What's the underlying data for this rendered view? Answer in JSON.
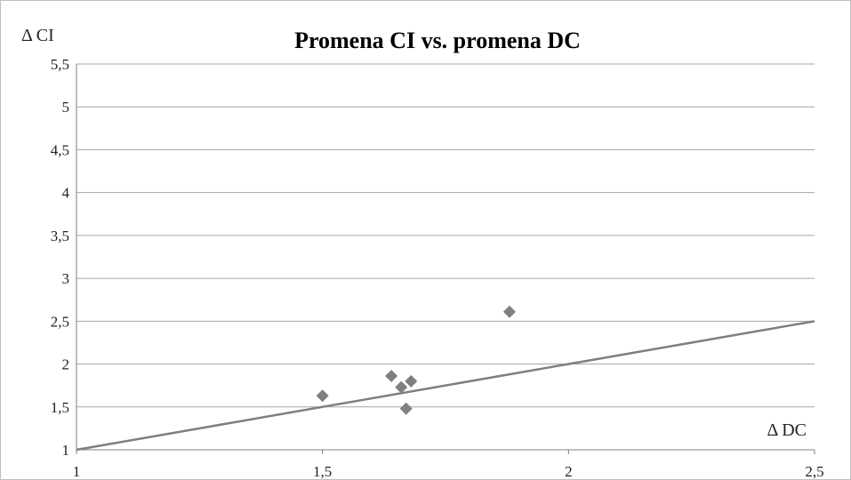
{
  "chart_data": {
    "type": "scatter",
    "title": "Promena CI vs. promena DC",
    "xlabel": "Δ DC",
    "ylabel": "Δ CI",
    "xlim": [
      1,
      2.5
    ],
    "ylim": [
      1,
      5.5
    ],
    "x_ticks": [
      "1",
      "1,5",
      "2",
      "2,5"
    ],
    "y_ticks": [
      "1",
      "1,5",
      "2",
      "2,5",
      "3",
      "3,5",
      "4",
      "4,5",
      "5",
      "5,5"
    ],
    "grid": "horizontal",
    "legend": "none",
    "marker": "diamond",
    "colors": {
      "marker": "#7f7f7f",
      "line": "#7f7f7f",
      "grid": "#a6a6a6"
    },
    "points": [
      {
        "x": 1.5,
        "y": 1.63
      },
      {
        "x": 1.64,
        "y": 1.86
      },
      {
        "x": 1.66,
        "y": 1.73
      },
      {
        "x": 1.67,
        "y": 1.48
      },
      {
        "x": 1.68,
        "y": 1.8
      },
      {
        "x": 1.88,
        "y": 2.61
      }
    ],
    "reference_line": {
      "x": [
        1,
        2.5
      ],
      "y": [
        1,
        2.5
      ]
    }
  }
}
